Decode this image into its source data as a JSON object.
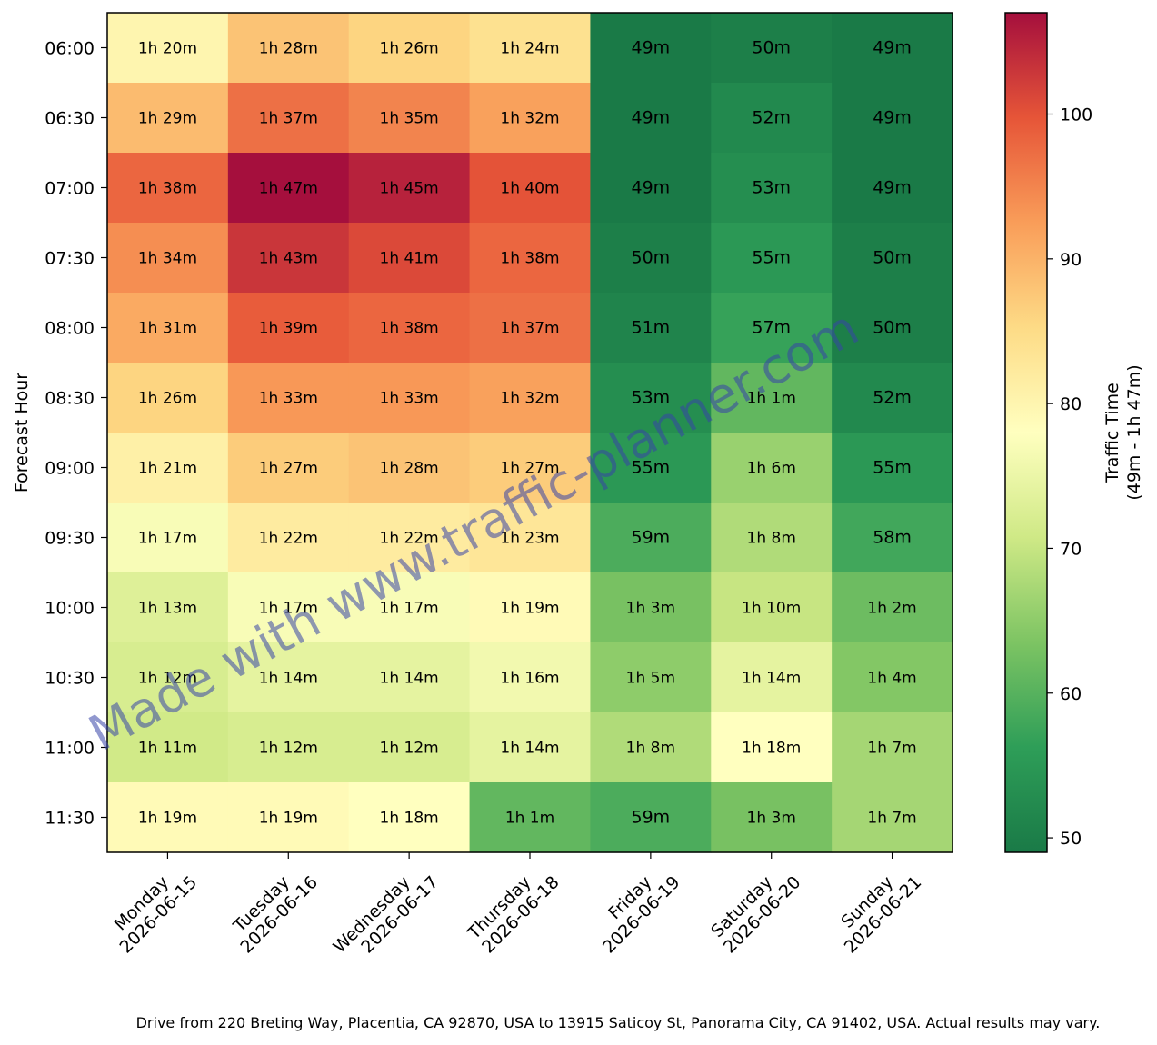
{
  "chart_data": {
    "type": "heatmap",
    "title": "",
    "xlabel": "",
    "ylabel": "Forecast Hour",
    "x_categories": [
      {
        "day": "Monday",
        "date": "2026-06-15"
      },
      {
        "day": "Tuesday",
        "date": "2026-06-16"
      },
      {
        "day": "Wednesday",
        "date": "2026-06-17"
      },
      {
        "day": "Thursday",
        "date": "2026-06-18"
      },
      {
        "day": "Friday",
        "date": "2026-06-19"
      },
      {
        "day": "Saturday",
        "date": "2026-06-20"
      },
      {
        "day": "Sunday",
        "date": "2026-06-21"
      }
    ],
    "y_categories": [
      "06:00",
      "06:30",
      "07:00",
      "07:30",
      "08:00",
      "08:30",
      "09:00",
      "09:30",
      "10:00",
      "10:30",
      "11:00",
      "11:30"
    ],
    "values_minutes": [
      [
        80,
        88,
        86,
        84,
        49,
        50,
        49
      ],
      [
        89,
        97,
        95,
        92,
        49,
        52,
        49
      ],
      [
        98,
        107,
        105,
        100,
        49,
        53,
        49
      ],
      [
        94,
        103,
        101,
        98,
        50,
        55,
        50
      ],
      [
        91,
        99,
        98,
        97,
        51,
        57,
        50
      ],
      [
        86,
        93,
        93,
        92,
        53,
        61,
        52
      ],
      [
        81,
        87,
        88,
        87,
        55,
        66,
        55
      ],
      [
        77,
        82,
        82,
        83,
        59,
        68,
        58
      ],
      [
        73,
        77,
        77,
        79,
        63,
        70,
        62
      ],
      [
        72,
        74,
        74,
        76,
        65,
        74,
        64
      ],
      [
        71,
        72,
        72,
        74,
        68,
        78,
        67
      ],
      [
        79,
        79,
        78,
        61,
        59,
        63,
        67
      ]
    ],
    "labels": [
      [
        "1h 20m",
        "1h 28m",
        "1h 26m",
        "1h 24m",
        "49m",
        "50m",
        "49m"
      ],
      [
        "1h 29m",
        "1h 37m",
        "1h 35m",
        "1h 32m",
        "49m",
        "52m",
        "49m"
      ],
      [
        "1h 38m",
        "1h 47m",
        "1h 45m",
        "1h 40m",
        "49m",
        "53m",
        "49m"
      ],
      [
        "1h 34m",
        "1h 43m",
        "1h 41m",
        "1h 38m",
        "50m",
        "55m",
        "50m"
      ],
      [
        "1h 31m",
        "1h 39m",
        "1h 38m",
        "1h 37m",
        "51m",
        "57m",
        "50m"
      ],
      [
        "1h 26m",
        "1h 33m",
        "1h 33m",
        "1h 32m",
        "53m",
        "1h 1m",
        "52m"
      ],
      [
        "1h 21m",
        "1h 27m",
        "1h 28m",
        "1h 27m",
        "55m",
        "1h 6m",
        "55m"
      ],
      [
        "1h 17m",
        "1h 22m",
        "1h 22m",
        "1h 23m",
        "59m",
        "1h 8m",
        "58m"
      ],
      [
        "1h 13m",
        "1h 17m",
        "1h 17m",
        "1h 19m",
        "1h 3m",
        "1h 10m",
        "1h 2m"
      ],
      [
        "1h 12m",
        "1h 14m",
        "1h 14m",
        "1h 16m",
        "1h 5m",
        "1h 14m",
        "1h 4m"
      ],
      [
        "1h 11m",
        "1h 12m",
        "1h 12m",
        "1h 14m",
        "1h 8m",
        "1h 18m",
        "1h 7m"
      ],
      [
        "1h 19m",
        "1h 19m",
        "1h 18m",
        "1h 1m",
        "59m",
        "1h 3m",
        "1h 7m"
      ]
    ],
    "color_scale": {
      "colormap": "RdYlGn_r",
      "vmin": 49,
      "vmax": 107,
      "ticks": [
        50,
        60,
        70,
        80,
        90,
        100
      ],
      "label_line1": "Traffic Time",
      "label_line2": "(49m - 1h 47m)",
      "stops": [
        "#1a7a47",
        "#2e9e58",
        "#7dc463",
        "#cfe986",
        "#ffffbf",
        "#fddb86",
        "#f99d59",
        "#e65538",
        "#a50f3d"
      ]
    },
    "grid": false
  },
  "watermark": "Made with www.traffic-planner.com",
  "footer": "Drive from 220 Breting Way, Placentia, CA 92870, USA to 13915 Saticoy St, Panorama City, CA 91402, USA. Actual results may vary."
}
